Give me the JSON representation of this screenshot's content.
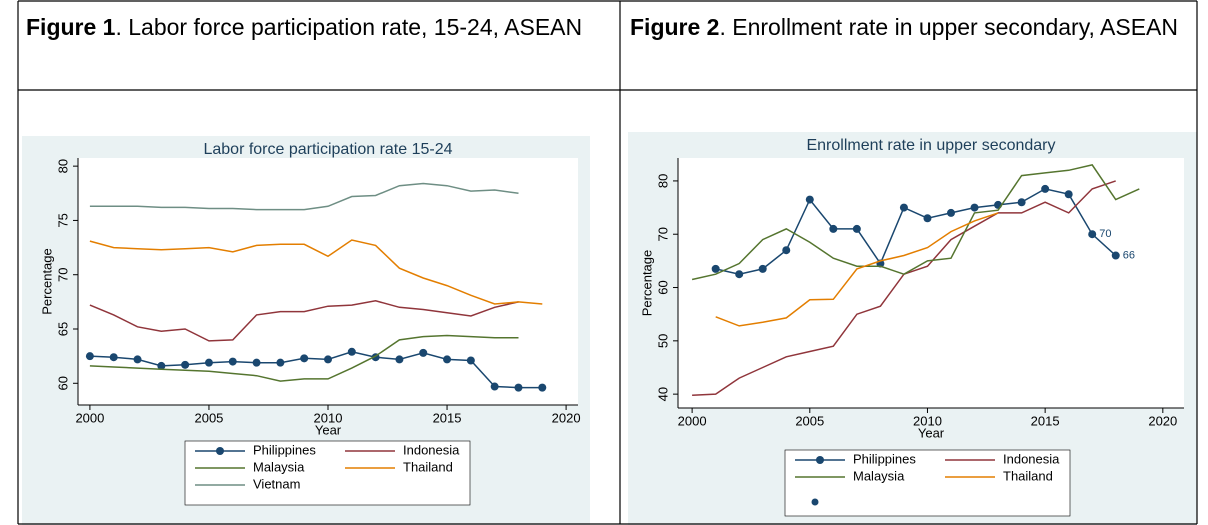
{
  "document": {
    "figures": [
      {
        "label": "Figure 1",
        "caption": ". Labor force participation rate, 15-24, ASEAN"
      },
      {
        "label": "Figure 2",
        "caption": ". Enrollment rate in upper secondary, ASEAN"
      }
    ]
  },
  "chart_data": [
    {
      "type": "line",
      "title": "Labor force participation rate 15-24",
      "x_label": "Year",
      "y_label": "Percentage",
      "x": [
        2000,
        2001,
        2002,
        2003,
        2004,
        2005,
        2006,
        2007,
        2008,
        2009,
        2010,
        2011,
        2012,
        2013,
        2014,
        2015,
        2016,
        2017,
        2018,
        2019
      ],
      "xlim": [
        1999.5,
        2020.5
      ],
      "xticks": [
        2000,
        2005,
        2010,
        2015,
        2020
      ],
      "ylim": [
        58,
        80.75
      ],
      "yticks": [
        60,
        65,
        70,
        75,
        80
      ],
      "grid": false,
      "series": [
        {
          "name": "Philippines",
          "color": "#1a476f",
          "marker": true,
          "values": [
            62.5,
            62.4,
            62.2,
            61.6,
            61.7,
            61.9,
            62.0,
            61.9,
            61.9,
            62.3,
            62.2,
            62.9,
            62.4,
            62.2,
            62.8,
            62.2,
            62.1,
            59.7,
            59.6,
            59.6
          ]
        },
        {
          "name": "Indonesia",
          "color": "#90353b",
          "marker": false,
          "values": [
            67.2,
            66.3,
            65.2,
            64.8,
            65.0,
            63.9,
            64.0,
            66.3,
            66.6,
            66.6,
            67.1,
            67.2,
            67.6,
            67.0,
            66.8,
            66.5,
            66.2,
            67.0,
            67.5,
            null
          ]
        },
        {
          "name": "Malaysia",
          "color": "#55752f",
          "marker": false,
          "values": [
            61.6,
            61.5,
            61.4,
            61.3,
            61.2,
            61.1,
            60.9,
            60.7,
            60.2,
            60.4,
            60.4,
            61.4,
            62.5,
            64.0,
            64.3,
            64.4,
            64.3,
            64.2,
            64.2,
            null
          ]
        },
        {
          "name": "Thailand",
          "color": "#e37e00",
          "marker": false,
          "values": [
            73.1,
            72.5,
            72.4,
            72.3,
            72.4,
            72.5,
            72.1,
            72.7,
            72.8,
            72.8,
            71.7,
            73.2,
            72.7,
            70.6,
            69.7,
            69.0,
            68.1,
            67.3,
            67.5,
            67.3
          ]
        },
        {
          "name": "Vietnam",
          "color": "#6e8e84",
          "marker": false,
          "values": [
            76.3,
            76.3,
            76.3,
            76.2,
            76.2,
            76.1,
            76.1,
            76.0,
            76.0,
            76.0,
            76.3,
            77.2,
            77.3,
            78.2,
            78.4,
            78.2,
            77.7,
            77.8,
            77.5,
            null
          ]
        }
      ]
    },
    {
      "type": "line",
      "title": "Enrollment rate in upper secondary",
      "x_label": "Year",
      "y_label": "Percentage",
      "x": [
        2000,
        2001,
        2002,
        2003,
        2004,
        2005,
        2006,
        2007,
        2008,
        2009,
        2010,
        2011,
        2012,
        2013,
        2014,
        2015,
        2016,
        2017,
        2018,
        2019
      ],
      "xlim": [
        1999.4,
        2020.9
      ],
      "xticks": [
        2000,
        2005,
        2010,
        2015,
        2020
      ],
      "ylim": [
        37.4,
        84.3
      ],
      "yticks": [
        40,
        50,
        60,
        70,
        80
      ],
      "grid": false,
      "series": [
        {
          "name": "Philippines",
          "color": "#1a476f",
          "marker": true,
          "values": [
            null,
            63.5,
            62.5,
            63.5,
            67,
            76.5,
            71,
            71,
            64.5,
            75,
            73,
            74,
            75,
            75.5,
            76,
            78.5,
            77.5,
            70,
            66,
            null
          ],
          "value_labels": [
            null,
            null,
            null,
            null,
            null,
            null,
            null,
            null,
            null,
            null,
            null,
            null,
            null,
            null,
            null,
            null,
            null,
            "70",
            "66",
            null
          ]
        },
        {
          "name": "Indonesia",
          "color": "#90353b",
          "marker": false,
          "values": [
            39.8,
            40,
            43,
            45,
            47,
            48,
            49,
            55,
            56.5,
            62.5,
            64,
            69,
            71.5,
            74,
            74,
            76,
            74,
            78.5,
            80,
            null
          ]
        },
        {
          "name": "Malaysia",
          "color": "#55752f",
          "marker": false,
          "values": [
            61.5,
            62.5,
            64.5,
            69,
            71,
            68.5,
            65.5,
            64,
            64,
            62.5,
            65,
            65.5,
            74,
            74.5,
            81,
            81.5,
            82,
            83,
            76.5,
            78.5
          ]
        },
        {
          "name": "Thailand",
          "color": "#e37e00",
          "marker": false,
          "values": [
            null,
            54.5,
            52.8,
            53.5,
            54.3,
            57.7,
            57.8,
            63.5,
            65,
            66,
            67.5,
            70.5,
            72.5,
            74,
            null,
            null,
            null,
            null,
            null,
            null
          ]
        }
      ]
    }
  ]
}
